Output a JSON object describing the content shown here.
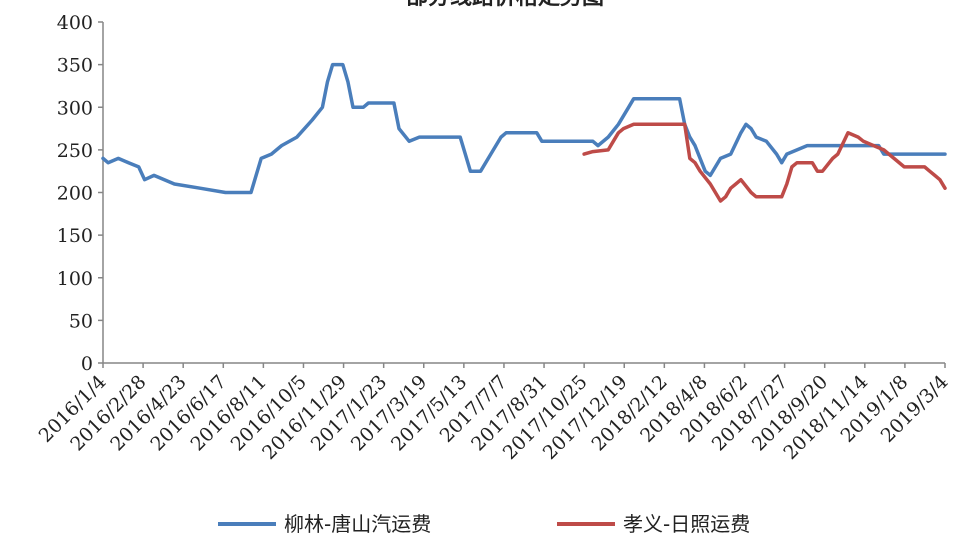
{
  "chart_data": {
    "type": "line",
    "title": "部分线路价格走势图",
    "ylim": [
      0,
      400
    ],
    "yticks": [
      0,
      50,
      100,
      150,
      200,
      250,
      300,
      350,
      400
    ],
    "xlim": [
      "2016-01-04",
      "2019-03-04"
    ],
    "xtick_labels": [
      "2016/1/4",
      "2016/2/28",
      "2016/4/23",
      "2016/6/17",
      "2016/8/11",
      "2016/10/5",
      "2016/11/29",
      "2017/1/23",
      "2017/3/19",
      "2017/5/13",
      "2017/7/7",
      "2017/8/31",
      "2017/10/25",
      "2017/12/19",
      "2018/2/12",
      "2018/4/8",
      "2018/6/2",
      "2018/7/27",
      "2018/9/20",
      "2018/11/14",
      "2019/1/8",
      "2019/3/4"
    ],
    "grid": false,
    "legend_position": "bottom",
    "series": [
      {
        "name": "柳林-唐山汽运费",
        "color": "#4a7ebb",
        "points": [
          [
            "2016-01-04",
            240
          ],
          [
            "2016-01-11",
            235
          ],
          [
            "2016-01-25",
            240
          ],
          [
            "2016-02-08",
            235
          ],
          [
            "2016-02-22",
            230
          ],
          [
            "2016-03-01",
            215
          ],
          [
            "2016-03-14",
            220
          ],
          [
            "2016-04-11",
            210
          ],
          [
            "2016-05-16",
            205
          ],
          [
            "2016-06-20",
            200
          ],
          [
            "2016-07-25",
            200
          ],
          [
            "2016-08-01",
            220
          ],
          [
            "2016-08-08",
            240
          ],
          [
            "2016-08-22",
            245
          ],
          [
            "2016-09-05",
            255
          ],
          [
            "2016-09-26",
            265
          ],
          [
            "2016-10-17",
            285
          ],
          [
            "2016-10-31",
            300
          ],
          [
            "2016-11-07",
            330
          ],
          [
            "2016-11-14",
            350
          ],
          [
            "2016-11-28",
            350
          ],
          [
            "2016-12-05",
            330
          ],
          [
            "2016-12-12",
            300
          ],
          [
            "2016-12-26",
            300
          ],
          [
            "2017-01-02",
            305
          ],
          [
            "2017-02-06",
            305
          ],
          [
            "2017-02-13",
            275
          ],
          [
            "2017-02-27",
            260
          ],
          [
            "2017-03-13",
            265
          ],
          [
            "2017-05-08",
            265
          ],
          [
            "2017-05-15",
            245
          ],
          [
            "2017-05-22",
            225
          ],
          [
            "2017-06-05",
            225
          ],
          [
            "2017-06-19",
            245
          ],
          [
            "2017-07-03",
            265
          ],
          [
            "2017-07-10",
            270
          ],
          [
            "2017-08-21",
            270
          ],
          [
            "2017-08-28",
            260
          ],
          [
            "2017-11-06",
            260
          ],
          [
            "2017-11-13",
            255
          ],
          [
            "2017-11-27",
            265
          ],
          [
            "2017-12-11",
            280
          ],
          [
            "2017-12-25",
            300
          ],
          [
            "2018-01-01",
            310
          ],
          [
            "2018-03-05",
            310
          ],
          [
            "2018-03-12",
            280
          ],
          [
            "2018-03-19",
            265
          ],
          [
            "2018-03-26",
            255
          ],
          [
            "2018-04-09",
            225
          ],
          [
            "2018-04-16",
            220
          ],
          [
            "2018-04-30",
            240
          ],
          [
            "2018-05-14",
            245
          ],
          [
            "2018-05-28",
            270
          ],
          [
            "2018-06-04",
            280
          ],
          [
            "2018-06-11",
            275
          ],
          [
            "2018-06-18",
            265
          ],
          [
            "2018-07-02",
            260
          ],
          [
            "2018-07-16",
            245
          ],
          [
            "2018-07-23",
            235
          ],
          [
            "2018-07-30",
            245
          ],
          [
            "2018-08-27",
            255
          ],
          [
            "2018-11-05",
            255
          ],
          [
            "2018-11-12",
            255
          ],
          [
            "2018-12-03",
            255
          ],
          [
            "2018-12-10",
            245
          ],
          [
            "2018-12-24",
            245
          ],
          [
            "2018-12-31",
            245
          ],
          [
            "2019-03-04",
            245
          ]
        ]
      },
      {
        "name": "孝义-日照运费",
        "color": "#be4b48",
        "points": [
          [
            "2017-10-25",
            245
          ],
          [
            "2017-11-06",
            248
          ],
          [
            "2017-11-27",
            250
          ],
          [
            "2017-12-04",
            260
          ],
          [
            "2017-12-11",
            270
          ],
          [
            "2017-12-18",
            275
          ],
          [
            "2018-01-01",
            280
          ],
          [
            "2018-03-12",
            280
          ],
          [
            "2018-03-19",
            240
          ],
          [
            "2018-03-26",
            235
          ],
          [
            "2018-04-02",
            225
          ],
          [
            "2018-04-16",
            210
          ],
          [
            "2018-04-30",
            190
          ],
          [
            "2018-05-07",
            195
          ],
          [
            "2018-05-14",
            205
          ],
          [
            "2018-05-21",
            210
          ],
          [
            "2018-05-28",
            215
          ],
          [
            "2018-06-11",
            200
          ],
          [
            "2018-06-18",
            195
          ],
          [
            "2018-07-23",
            195
          ],
          [
            "2018-07-30",
            210
          ],
          [
            "2018-08-06",
            230
          ],
          [
            "2018-08-13",
            235
          ],
          [
            "2018-09-03",
            235
          ],
          [
            "2018-09-10",
            225
          ],
          [
            "2018-09-17",
            225
          ],
          [
            "2018-10-01",
            240
          ],
          [
            "2018-10-08",
            245
          ],
          [
            "2018-10-22",
            270
          ],
          [
            "2018-11-05",
            265
          ],
          [
            "2018-11-12",
            260
          ],
          [
            "2018-11-26",
            255
          ],
          [
            "2018-12-10",
            250
          ],
          [
            "2018-12-24",
            240
          ],
          [
            "2019-01-07",
            230
          ],
          [
            "2019-02-04",
            230
          ],
          [
            "2019-02-11",
            225
          ],
          [
            "2019-02-18",
            220
          ],
          [
            "2019-02-25",
            215
          ],
          [
            "2019-03-04",
            205
          ]
        ]
      }
    ]
  }
}
